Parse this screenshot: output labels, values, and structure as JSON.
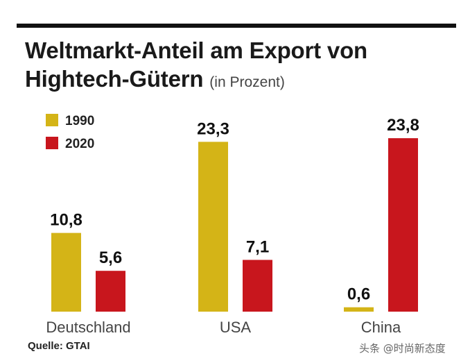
{
  "chart_data": {
    "type": "bar",
    "title": "Weltmarkt-Anteil am Export von Hightech-Gütern",
    "subtitle": "(in Prozent)",
    "categories": [
      "Deutschland",
      "USA",
      "China"
    ],
    "series": [
      {
        "name": "1990",
        "values": [
          10.8,
          23.3,
          0.6
        ],
        "labels": [
          "10,8",
          "23,3",
          "0,6"
        ],
        "color": "#d4b417"
      },
      {
        "name": "2020",
        "values": [
          5.6,
          7.1,
          23.8
        ],
        "labels": [
          "5,6",
          "7,1",
          "23,8"
        ],
        "color": "#c8161d"
      }
    ],
    "ylim": [
      0,
      25
    ],
    "grid": false,
    "legend_position": "top-left",
    "source": "Quelle: GTAI"
  },
  "watermark": "头条 @时尚新态度",
  "colors": {
    "rule": "#111111",
    "bar_1990": "#d4b417",
    "bar_2020": "#c8161d"
  }
}
